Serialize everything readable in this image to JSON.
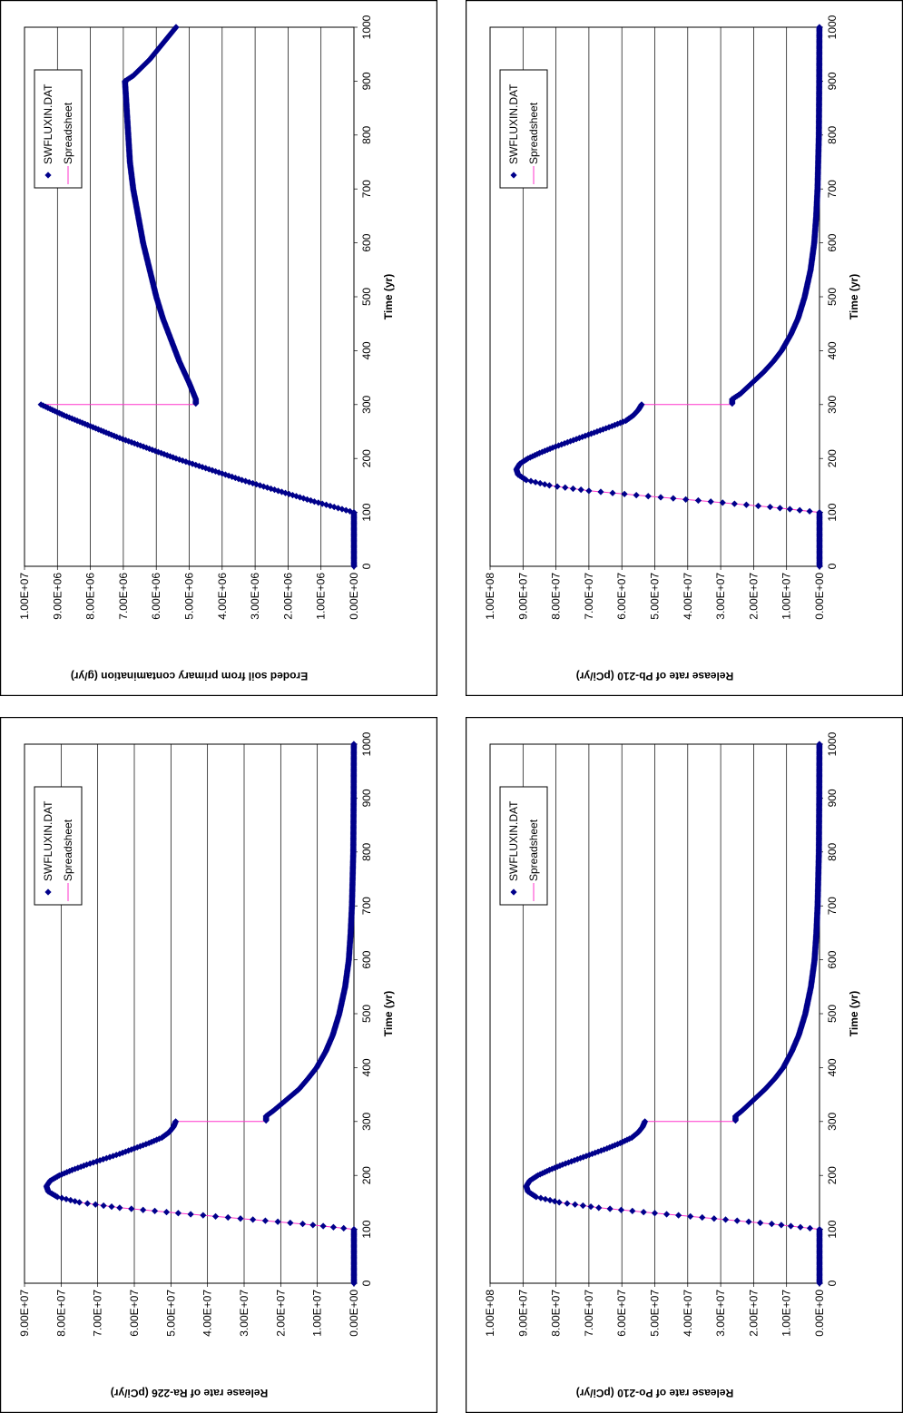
{
  "colors": {
    "marker": "#00008b",
    "line": "#ff33cc"
  },
  "chart_data": [
    {
      "type": "scatter",
      "xlabel": "Time (yr)",
      "ylabel": "Release rate of Pb-210 (pCi/yr)",
      "xlim": [
        0,
        1000
      ],
      "ylim": [
        0,
        100000000
      ],
      "x_ticks": [
        "0",
        "100",
        "200",
        "300",
        "400",
        "500",
        "600",
        "700",
        "800",
        "900",
        "1000"
      ],
      "y_ticks": [
        "0.00E+00",
        "1.00E+07",
        "2.00E+07",
        "3.00E+07",
        "4.00E+07",
        "5.00E+07",
        "6.00E+07",
        "7.00E+07",
        "8.00E+07",
        "9.00E+07",
        "1.00E+08"
      ],
      "grid": "horizontal",
      "legend_position": "upper-left",
      "legend": [
        "SWFLUXIN.DAT",
        "Spreadsheet"
      ],
      "series": [
        {
          "name": "SWFLUXIN.DAT",
          "x": [
            0,
            100,
            110,
            120,
            130,
            140,
            150,
            160,
            170,
            180,
            190,
            200,
            210,
            220,
            230,
            240,
            250,
            260,
            270,
            280,
            290,
            300,
            310,
            320,
            340,
            360,
            380,
            400,
            430,
            460,
            500,
            550,
            600,
            650,
            700,
            800,
            900,
            1000
          ],
          "y": [
            0,
            0,
            15000000,
            33000000,
            52000000,
            70000000,
            82000000,
            89000000,
            91500000,
            92000000,
            91000000,
            88500000,
            85000000,
            81000000,
            76500000,
            72000000,
            67500000,
            63000000,
            58800000,
            56500000,
            55000000,
            54000000,
            26500000,
            24000000,
            20500000,
            17000000,
            14000000,
            11500000,
            8700000,
            6500000,
            4500000,
            2700000,
            1600000,
            1000000,
            600000,
            200000,
            80000,
            30000
          ]
        },
        {
          "name": "Spreadsheet",
          "x": [
            0,
            100,
            110,
            120,
            130,
            140,
            150,
            160,
            170,
            180,
            190,
            200,
            210,
            220,
            230,
            240,
            250,
            260,
            270,
            280,
            290,
            300,
            300,
            310,
            320,
            340,
            360,
            380,
            400,
            430,
            460,
            500,
            550,
            600,
            650,
            700,
            800,
            900,
            1000
          ],
          "y": [
            0,
            0,
            15000000,
            33000000,
            52000000,
            70000000,
            82000000,
            89000000,
            91500000,
            92000000,
            91000000,
            88500000,
            85000000,
            81000000,
            76500000,
            72000000,
            67500000,
            63000000,
            58800000,
            56500000,
            55000000,
            54000000,
            27000000,
            26500000,
            24000000,
            20500000,
            17000000,
            14000000,
            11500000,
            8700000,
            6500000,
            4500000,
            2700000,
            1600000,
            1000000,
            600000,
            200000,
            80000,
            30000
          ]
        }
      ]
    },
    {
      "type": "scatter",
      "xlabel": "Time (yr)",
      "ylabel": "Release rate of Ra-226 (pCi/yr)",
      "xlim": [
        0,
        1000
      ],
      "ylim": [
        0,
        90000000
      ],
      "x_ticks": [
        "0",
        "100",
        "200",
        "300",
        "400",
        "500",
        "600",
        "700",
        "800",
        "900",
        "1000"
      ],
      "y_ticks": [
        "0.00E+00",
        "1.00E+07",
        "2.00E+07",
        "3.00E+07",
        "4.00E+07",
        "5.00E+07",
        "6.00E+07",
        "7.00E+07",
        "8.00E+07",
        "9.00E+07"
      ],
      "grid": "horizontal",
      "legend_position": "upper-left",
      "legend": [
        "SWFLUXIN.DAT",
        "Spreadsheet"
      ],
      "series": [
        {
          "name": "SWFLUXIN.DAT",
          "x": [
            0,
            100,
            110,
            120,
            130,
            140,
            150,
            160,
            170,
            180,
            190,
            200,
            210,
            220,
            230,
            240,
            250,
            260,
            270,
            280,
            290,
            300,
            310,
            320,
            340,
            360,
            380,
            400,
            430,
            460,
            500,
            550,
            600,
            650,
            700,
            800,
            900,
            1000
          ],
          "y": [
            0,
            0,
            14000000,
            31000000,
            48000000,
            64000000,
            75000000,
            81000000,
            83500000,
            84000000,
            83000000,
            80500000,
            77000000,
            73000000,
            68500000,
            64000000,
            60000000,
            56000000,
            52500000,
            50500000,
            49300000,
            48700000,
            24000000,
            22000000,
            18500000,
            15000000,
            12500000,
            10200000,
            7700000,
            5800000,
            4000000,
            2400000,
            1400000,
            900000,
            550000,
            180000,
            70000,
            25000
          ]
        },
        {
          "name": "Spreadsheet",
          "x": [
            0,
            100,
            110,
            120,
            130,
            140,
            150,
            160,
            170,
            180,
            190,
            200,
            210,
            220,
            230,
            240,
            250,
            260,
            270,
            280,
            290,
            300,
            300,
            310,
            320,
            340,
            360,
            380,
            400,
            430,
            460,
            500,
            550,
            600,
            650,
            700,
            800,
            900,
            1000
          ],
          "y": [
            0,
            0,
            14000000,
            31000000,
            48000000,
            64000000,
            75000000,
            81000000,
            83500000,
            84000000,
            83000000,
            80500000,
            77000000,
            73000000,
            68500000,
            64000000,
            60000000,
            56000000,
            52500000,
            50500000,
            49300000,
            48700000,
            24500000,
            24000000,
            22000000,
            18500000,
            15000000,
            12500000,
            10200000,
            7700000,
            5800000,
            4000000,
            2400000,
            1400000,
            900000,
            550000,
            180000,
            70000,
            25000
          ]
        }
      ]
    },
    {
      "type": "scatter",
      "xlabel": "Time (yr)",
      "ylabel": "Eroded soil from primary contamination (g/yr)",
      "xlim": [
        0,
        1000
      ],
      "ylim": [
        0,
        10000000
      ],
      "x_ticks": [
        "0",
        "100",
        "200",
        "300",
        "400",
        "500",
        "600",
        "700",
        "800",
        "900",
        "1000"
      ],
      "y_ticks": [
        "0.00E+00",
        "1.00E+06",
        "2.00E+06",
        "3.00E+06",
        "4.00E+06",
        "5.00E+06",
        "6.00E+06",
        "7.00E+06",
        "8.00E+06",
        "9.00E+06",
        "1.00E+07"
      ],
      "grid": "horizontal",
      "legend_position": "upper-left",
      "legend": [
        "SWFLUXIN.DAT",
        "Spreadsheet"
      ],
      "series": [
        {
          "name": "SWFLUXIN.DAT",
          "x": [
            0,
            100,
            120,
            140,
            160,
            180,
            200,
            220,
            240,
            260,
            280,
            300,
            310,
            340,
            380,
            420,
            460,
            500,
            550,
            600,
            650,
            700,
            750,
            800,
            850,
            900,
            910,
            940,
            970,
            1000
          ],
          "y": [
            0,
            0,
            1200000,
            2300000,
            3400000,
            4400000,
            5400000,
            6300000,
            7200000,
            8000000,
            8800000,
            9500000,
            4800000,
            5000000,
            5300000,
            5550000,
            5800000,
            6000000,
            6200000,
            6400000,
            6550000,
            6700000,
            6800000,
            6850000,
            6900000,
            6950000,
            6700000,
            6200000,
            5800000,
            5400000
          ]
        },
        {
          "name": "Spreadsheet",
          "x": [
            0,
            100,
            120,
            140,
            160,
            180,
            200,
            220,
            240,
            260,
            280,
            300,
            300,
            310,
            340,
            380,
            420,
            460,
            500,
            550,
            600,
            650,
            700,
            750,
            800,
            850,
            900,
            910,
            940,
            970,
            1000
          ],
          "y": [
            0,
            0,
            1200000,
            2300000,
            3400000,
            4400000,
            5400000,
            6300000,
            7200000,
            8000000,
            8800000,
            9500000,
            4800000,
            4800000,
            5000000,
            5300000,
            5550000,
            5800000,
            6000000,
            6200000,
            6400000,
            6550000,
            6700000,
            6800000,
            6850000,
            6900000,
            6950000,
            6700000,
            6200000,
            5800000,
            5400000
          ]
        }
      ]
    },
    {
      "type": "scatter",
      "xlabel": "Time (yr)",
      "ylabel": "Release rate of Po-210 (pCi/yr)",
      "xlim": [
        0,
        1000
      ],
      "ylim": [
        0,
        100000000
      ],
      "x_ticks": [
        "0",
        "100",
        "200",
        "300",
        "400",
        "500",
        "600",
        "700",
        "800",
        "900",
        "1000"
      ],
      "y_ticks": [
        "0.00E+00",
        "1.00E+07",
        "2.00E+07",
        "3.00E+07",
        "4.00E+07",
        "5.00E+07",
        "6.00E+07",
        "7.00E+07",
        "8.00E+07",
        "9.00E+07",
        "1.00E+08"
      ],
      "grid": "horizontal",
      "legend_position": "upper-left",
      "legend": [
        "SWFLUXIN.DAT",
        "Spreadsheet"
      ],
      "series": [
        {
          "name": "SWFLUXIN.DAT",
          "x": [
            0,
            100,
            110,
            120,
            130,
            140,
            150,
            160,
            170,
            180,
            190,
            200,
            210,
            220,
            230,
            240,
            250,
            260,
            270,
            280,
            290,
            300,
            310,
            320,
            340,
            360,
            380,
            400,
            430,
            460,
            500,
            550,
            600,
            650,
            700,
            800,
            900,
            1000
          ],
          "y": [
            0,
            0,
            14500000,
            32000000,
            50000000,
            67000000,
            79000000,
            86000000,
            88500000,
            89000000,
            88000000,
            85500000,
            82000000,
            78000000,
            73500000,
            69000000,
            64500000,
            60500000,
            57000000,
            55000000,
            53700000,
            53000000,
            25500000,
            23500000,
            20000000,
            16500000,
            13500000,
            11000000,
            8400000,
            6300000,
            4300000,
            2600000,
            1500000,
            950000,
            580000,
            190000,
            75000,
            28000
          ]
        },
        {
          "name": "Spreadsheet",
          "x": [
            0,
            100,
            110,
            120,
            130,
            140,
            150,
            160,
            170,
            180,
            190,
            200,
            210,
            220,
            230,
            240,
            250,
            260,
            270,
            280,
            290,
            300,
            300,
            310,
            320,
            340,
            360,
            380,
            400,
            430,
            460,
            500,
            550,
            600,
            650,
            700,
            800,
            900,
            1000
          ],
          "y": [
            0,
            0,
            14500000,
            32000000,
            50000000,
            67000000,
            79000000,
            86000000,
            88500000,
            89000000,
            88000000,
            85500000,
            82000000,
            78000000,
            73500000,
            69000000,
            64500000,
            60500000,
            57000000,
            55000000,
            53700000,
            53000000,
            26000000,
            25500000,
            23500000,
            20000000,
            16500000,
            13500000,
            11000000,
            8400000,
            6300000,
            4300000,
            2600000,
            1500000,
            950000,
            580000,
            190000,
            75000,
            28000
          ]
        }
      ]
    }
  ]
}
